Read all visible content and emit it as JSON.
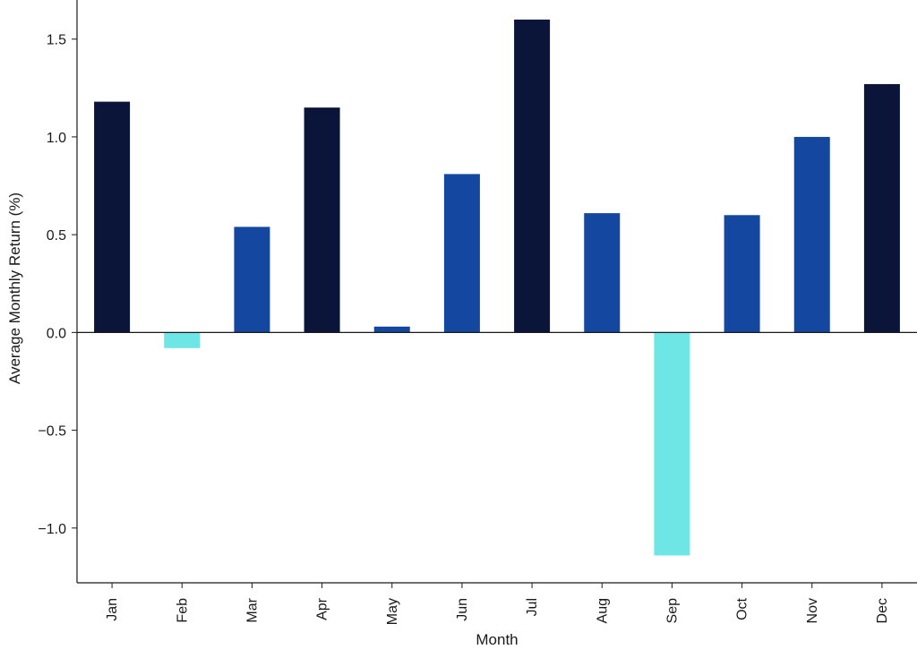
{
  "chart_data": {
    "type": "bar",
    "title": "",
    "xlabel": "Month",
    "ylabel": "Average Monthly Return (%)",
    "categories": [
      "Jan",
      "Feb",
      "Mar",
      "Apr",
      "May",
      "Jun",
      "Jul",
      "Aug",
      "Sep",
      "Oct",
      "Nov",
      "Dec"
    ],
    "values": [
      1.18,
      -0.08,
      0.54,
      1.15,
      0.03,
      0.81,
      1.6,
      0.61,
      -1.14,
      0.6,
      1.0,
      1.27
    ],
    "ylim": [
      -1.28,
      1.7
    ],
    "yticks": [
      -1.0,
      -0.5,
      0.0,
      0.5,
      1.0,
      1.5
    ],
    "ytick_labels": [
      "−1.0",
      "−0.5",
      "0.0",
      "0.5",
      "1.0",
      "1.5"
    ],
    "grid": false,
    "legend": "none",
    "colors": {
      "strong_positive": "#0b1539",
      "positive": "#1447a0",
      "negative": "#6ee6e6",
      "axis": "#1a1a1a"
    },
    "color_thresholds": {
      "strong_positive_min": 1.1
    }
  }
}
